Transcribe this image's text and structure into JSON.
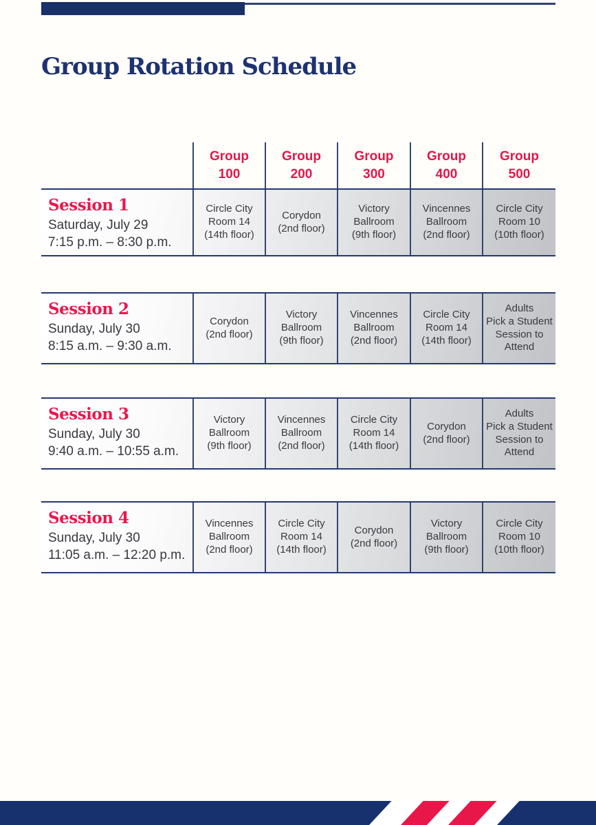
{
  "page": {
    "title": "Group Rotation Schedule"
  },
  "colors": {
    "navy_brand": "#1b2f68",
    "navy_border": "#32466f",
    "red_accent": "#e2174a",
    "body_text": "#38383f",
    "cell_gradient_start": "#ffffff",
    "cell_gradient_end": "#c1c3c7"
  },
  "header": {
    "columns": [
      "Group\n100",
      "Group\n200",
      "Group\n300",
      "Group\n400",
      "Group\n500"
    ]
  },
  "sessions": [
    {
      "title": "Session 1",
      "date": "Saturday, July 29",
      "time": "7:15 p.m. – 8:30 p.m.",
      "cells": [
        "Circle City\nRoom 14\n(14th floor)",
        "Corydon\n(2nd floor)",
        "Victory\nBallroom\n(9th floor)",
        "Vincennes\nBallroom\n(2nd floor)",
        "Circle City\nRoom 10\n(10th floor)"
      ]
    },
    {
      "title": "Session 2",
      "date": "Sunday, July 30",
      "time": "8:15 a.m. – 9:30 a.m.",
      "cells": [
        "Corydon\n(2nd floor)",
        "Victory\nBallroom\n(9th floor)",
        "Vincennes\nBallroom\n(2nd floor)",
        "Circle City\nRoom 14\n(14th floor)",
        "Adults\nPick a Student\nSession to\nAttend"
      ]
    },
    {
      "title": "Session 3",
      "date": "Sunday, July 30",
      "time": "9:40 a.m. – 10:55 a.m.",
      "cells": [
        "Victory\nBallroom\n(9th floor)",
        "Vincennes\nBallroom\n(2nd floor)",
        "Circle City\nRoom 14\n(14th floor)",
        "Corydon\n(2nd floor)",
        "Adults\nPick a Student\nSession to\nAttend"
      ]
    },
    {
      "title": "Session 4",
      "date": "Sunday, July 30",
      "time": "11:05 a.m. – 12:20 p.m.",
      "cells": [
        "Vincennes\nBallroom\n(2nd floor)",
        "Circle City\nRoom 14\n(14th floor)",
        "Corydon\n(2nd floor)",
        "Victory\nBallroom\n(9th floor)",
        "Circle City\nRoom 10\n(10th floor)"
      ]
    }
  ]
}
